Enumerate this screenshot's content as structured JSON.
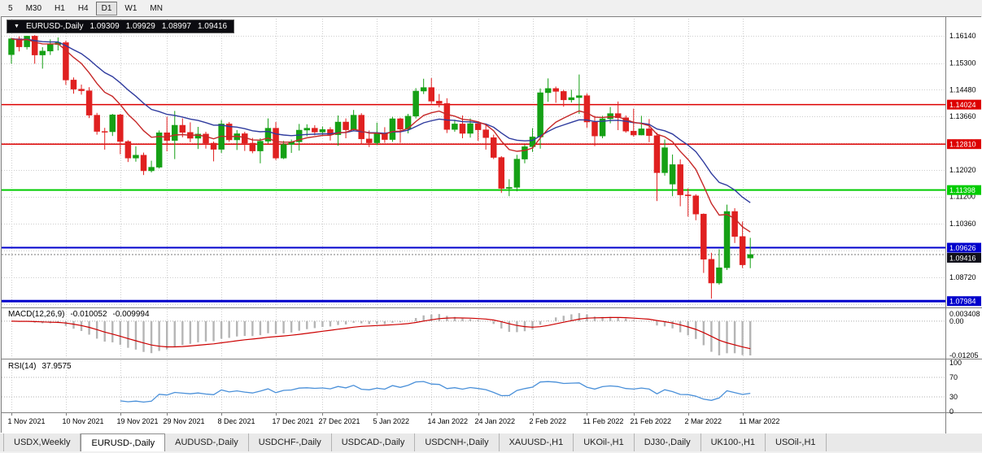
{
  "toolbar": {
    "timeframes": [
      {
        "label": "5",
        "active": false
      },
      {
        "label": "M30",
        "active": false
      },
      {
        "label": "H1",
        "active": false
      },
      {
        "label": "H4",
        "active": false
      },
      {
        "label": "D1",
        "active": true
      },
      {
        "label": "W1",
        "active": false
      },
      {
        "label": "MN",
        "active": false
      }
    ]
  },
  "chart": {
    "title": {
      "symbol": "EURUSD-,Daily",
      "open": "1.09309",
      "high": "1.09929",
      "low": "1.08997",
      "close": "1.09416"
    }
  },
  "macd": {
    "name": "MACD(12,26,9)",
    "value_main": "-0.010052",
    "value_signal": "-0.009994",
    "axis": {
      "top": "0.003408",
      "zero": "0.00",
      "bottom": "-0.01205"
    }
  },
  "rsi": {
    "name": "RSI(14)",
    "value": "37.9575",
    "axis": [
      "100",
      "70",
      "30",
      "0"
    ]
  },
  "tabs": [
    {
      "label": "USDX,Weekly",
      "active": false
    },
    {
      "label": "EURUSD-,Daily",
      "active": true
    },
    {
      "label": "AUDUSD-,Daily",
      "active": false
    },
    {
      "label": "USDCHF-,Daily",
      "active": false
    },
    {
      "label": "USDCAD-,Daily",
      "active": false
    },
    {
      "label": "USDCNH-,Daily",
      "active": false
    },
    {
      "label": "XAUUSD-,H1",
      "active": false
    },
    {
      "label": "UKOil-,H1",
      "active": false
    },
    {
      "label": "DJ30-,Daily",
      "active": false
    },
    {
      "label": "UK100-,H1",
      "active": false
    },
    {
      "label": "USOil-,H1",
      "active": false
    }
  ],
  "chart_data": {
    "type": "candlestick",
    "symbol": "EURUSD",
    "timeframe": "Daily",
    "title": "EURUSD-,Daily 1.09309 1.09929 1.08997 1.09416",
    "colors": {
      "up": "#15a015",
      "down": "#e02020",
      "grid": "#cdcdcd"
    },
    "y_axis": {
      "ticks": [
        "1.16140",
        "1.15300",
        "1.14480",
        "1.13660",
        "1.12020",
        "1.11200",
        "1.10360",
        "1.08720"
      ],
      "grid_values": [
        1.1614,
        1.153,
        1.1448,
        1.1366,
        1.1284,
        1.1202,
        1.112,
        1.1036,
        1.0954,
        1.0872,
        1.079
      ],
      "range": [
        1.0781,
        1.1672
      ]
    },
    "x_axis": {
      "tick_indices": [
        0,
        7,
        14,
        20,
        27,
        34,
        40,
        47,
        54,
        60,
        67,
        74,
        80,
        87,
        94
      ],
      "tick_labels": [
        "1 Nov 2021",
        "10 Nov 2021",
        "19 Nov 2021",
        "29 Nov 2021",
        "8 Dec 2021",
        "17 Dec 2021",
        "27 Dec 2021",
        "5 Jan 2022",
        "14 Jan 2022",
        "24 Jan 2022",
        "2 Feb 2022",
        "11 Feb 2022",
        "21 Feb 2022",
        "2 Mar 2022",
        "11 Mar 2022"
      ]
    },
    "levels": [
      {
        "value": 1.14024,
        "label": "1.14024",
        "color": "#dd0000",
        "width": 1.5
      },
      {
        "value": 1.1281,
        "label": "1.12810",
        "color": "#dd0000",
        "width": 1.5
      },
      {
        "value": 1.11398,
        "label": "1.11398",
        "color": "#00cc00",
        "width": 2
      },
      {
        "value": 1.09626,
        "label": "1.09626",
        "color": "#0000cc",
        "width": 2
      },
      {
        "value": 1.07984,
        "label": "1.07984",
        "color": "#0000cc",
        "width": 3
      }
    ],
    "current_price": {
      "value": 1.09416,
      "label": "1.09416",
      "color": "#10101a"
    },
    "overlays": [
      {
        "name": "ma-fast",
        "period": 10,
        "color": "#c62828"
      },
      {
        "name": "ma-slow",
        "period": 20,
        "color": "#2f3b9e"
      }
    ],
    "indicators": {
      "macd": {
        "params": [
          12,
          26,
          9
        ],
        "histogram_color": "#b5b5b5",
        "signal_color": "#cc0000",
        "values_shown": [
          -0.010052,
          -0.009994
        ]
      },
      "rsi": {
        "period": 14,
        "color": "#4a90d9",
        "levels": [
          30,
          70
        ],
        "value_shown": 37.9575
      }
    },
    "candles": [
      [
        1.1556,
        1.1608,
        1.1528,
        1.1605
      ],
      [
        1.1605,
        1.1612,
        1.1566,
        1.158
      ],
      [
        1.158,
        1.1614,
        1.1572,
        1.1613
      ],
      [
        1.1613,
        1.1616,
        1.1528,
        1.1555
      ],
      [
        1.1555,
        1.1579,
        1.1513,
        1.1567
      ],
      [
        1.1567,
        1.1603,
        1.1555,
        1.1587
      ],
      [
        1.1587,
        1.1609,
        1.1569,
        1.1593
      ],
      [
        1.1593,
        1.1599,
        1.1463,
        1.1478
      ],
      [
        1.1478,
        1.1486,
        1.1436,
        1.145
      ],
      [
        1.145,
        1.1464,
        1.1433,
        1.1445
      ],
      [
        1.1445,
        1.1456,
        1.1361,
        1.137
      ],
      [
        1.137,
        1.1377,
        1.131,
        1.132
      ],
      [
        1.132,
        1.1331,
        1.1264,
        1.1319
      ],
      [
        1.1319,
        1.1374,
        1.1306,
        1.1371
      ],
      [
        1.1371,
        1.1374,
        1.125,
        1.1289
      ],
      [
        1.1289,
        1.1293,
        1.1226,
        1.1238
      ],
      [
        1.1238,
        1.1274,
        1.1227,
        1.1247
      ],
      [
        1.1247,
        1.1255,
        1.1186,
        1.1199
      ],
      [
        1.1199,
        1.123,
        1.1194,
        1.121
      ],
      [
        1.121,
        1.1323,
        1.1206,
        1.1316
      ],
      [
        1.1316,
        1.1365,
        1.1259,
        1.1292
      ],
      [
        1.1292,
        1.1383,
        1.1235,
        1.1339
      ],
      [
        1.1339,
        1.136,
        1.1302,
        1.1317
      ],
      [
        1.1317,
        1.1348,
        1.1287,
        1.1299
      ],
      [
        1.1299,
        1.1334,
        1.1266,
        1.1312
      ],
      [
        1.1312,
        1.1319,
        1.1267,
        1.1284
      ],
      [
        1.1284,
        1.1289,
        1.1228,
        1.1265
      ],
      [
        1.1265,
        1.1355,
        1.1254,
        1.1343
      ],
      [
        1.1343,
        1.1349,
        1.1288,
        1.1294
      ],
      [
        1.1294,
        1.1324,
        1.1263,
        1.1313
      ],
      [
        1.1313,
        1.1319,
        1.126,
        1.1284
      ],
      [
        1.1284,
        1.13,
        1.1253,
        1.126
      ],
      [
        1.126,
        1.1299,
        1.1222,
        1.129
      ],
      [
        1.129,
        1.136,
        1.1283,
        1.133
      ],
      [
        1.133,
        1.1349,
        1.1232,
        1.1238
      ],
      [
        1.1238,
        1.1291,
        1.1235,
        1.128
      ],
      [
        1.128,
        1.1295,
        1.1254,
        1.1288
      ],
      [
        1.1288,
        1.1343,
        1.1261,
        1.1324
      ],
      [
        1.1324,
        1.1342,
        1.1305,
        1.133
      ],
      [
        1.133,
        1.1339,
        1.1308,
        1.1318
      ],
      [
        1.1318,
        1.1335,
        1.1306,
        1.1326
      ],
      [
        1.1326,
        1.1333,
        1.1292,
        1.131
      ],
      [
        1.131,
        1.1369,
        1.1276,
        1.1349
      ],
      [
        1.1349,
        1.136,
        1.1299,
        1.1325
      ],
      [
        1.1325,
        1.1386,
        1.1321,
        1.137
      ],
      [
        1.137,
        1.1376,
        1.1279,
        1.1297
      ],
      [
        1.1297,
        1.1323,
        1.1272,
        1.1285
      ],
      [
        1.1285,
        1.1347,
        1.1278,
        1.1313
      ],
      [
        1.1313,
        1.1333,
        1.1285,
        1.1295
      ],
      [
        1.1295,
        1.1365,
        1.1288,
        1.1359
      ],
      [
        1.1359,
        1.1362,
        1.1285,
        1.1327
      ],
      [
        1.1327,
        1.1374,
        1.1314,
        1.1367
      ],
      [
        1.1367,
        1.1453,
        1.136,
        1.1444
      ],
      [
        1.1444,
        1.1482,
        1.1435,
        1.1455
      ],
      [
        1.1455,
        1.1484,
        1.1405,
        1.1413
      ],
      [
        1.1413,
        1.1435,
        1.1394,
        1.1406
      ],
      [
        1.1406,
        1.1422,
        1.1315,
        1.1326
      ],
      [
        1.1326,
        1.1356,
        1.1319,
        1.1343
      ],
      [
        1.1343,
        1.1369,
        1.1299,
        1.1314
      ],
      [
        1.1314,
        1.136,
        1.1301,
        1.1344
      ],
      [
        1.1344,
        1.1348,
        1.1291,
        1.1325
      ],
      [
        1.1325,
        1.1339,
        1.1264,
        1.1301
      ],
      [
        1.1301,
        1.131,
        1.1235,
        1.124
      ],
      [
        1.124,
        1.1244,
        1.1131,
        1.1145
      ],
      [
        1.1145,
        1.1173,
        1.1121,
        1.1148
      ],
      [
        1.1148,
        1.1248,
        1.1136,
        1.1235
      ],
      [
        1.1235,
        1.1279,
        1.1222,
        1.1273
      ],
      [
        1.1273,
        1.133,
        1.1257,
        1.1303
      ],
      [
        1.1303,
        1.1452,
        1.1267,
        1.1439
      ],
      [
        1.1439,
        1.1483,
        1.1411,
        1.1452
      ],
      [
        1.1452,
        1.1458,
        1.1408,
        1.1443
      ],
      [
        1.1443,
        1.1448,
        1.1396,
        1.1417
      ],
      [
        1.1417,
        1.1448,
        1.1409,
        1.1424
      ],
      [
        1.1424,
        1.1495,
        1.1374,
        1.143
      ],
      [
        1.143,
        1.1437,
        1.1331,
        1.1349
      ],
      [
        1.1349,
        1.1368,
        1.1275,
        1.1306
      ],
      [
        1.1306,
        1.1368,
        1.1299,
        1.1359
      ],
      [
        1.1359,
        1.1395,
        1.1345,
        1.1375
      ],
      [
        1.1375,
        1.1412,
        1.1324,
        1.1362
      ],
      [
        1.1362,
        1.1369,
        1.1316,
        1.1321
      ],
      [
        1.1321,
        1.139,
        1.1304,
        1.1309
      ],
      [
        1.1309,
        1.1368,
        1.1308,
        1.1328
      ],
      [
        1.1328,
        1.1358,
        1.1287,
        1.1307
      ],
      [
        1.1307,
        1.1316,
        1.1106,
        1.1193
      ],
      [
        1.1193,
        1.1295,
        1.1184,
        1.127
      ],
      [
        1.1158,
        1.1249,
        1.1121,
        1.1218
      ],
      [
        1.1218,
        1.1234,
        1.109,
        1.1125
      ],
      [
        1.1125,
        1.1145,
        1.1058,
        1.1122
      ],
      [
        1.1122,
        1.1127,
        1.1047,
        1.1066
      ],
      [
        1.1066,
        1.1068,
        1.0885,
        1.0927
      ],
      [
        1.0927,
        1.0947,
        1.0806,
        1.0854
      ],
      [
        1.0854,
        1.0958,
        1.0849,
        1.0901
      ],
      [
        1.0901,
        1.1095,
        1.0894,
        1.1074
      ],
      [
        1.1074,
        1.1084,
        1.0977,
        1.0997
      ],
      [
        1.0997,
        1.1043,
        1.09,
        1.091
      ],
      [
        1.09309,
        1.09929,
        1.08997,
        1.09416
      ]
    ]
  }
}
